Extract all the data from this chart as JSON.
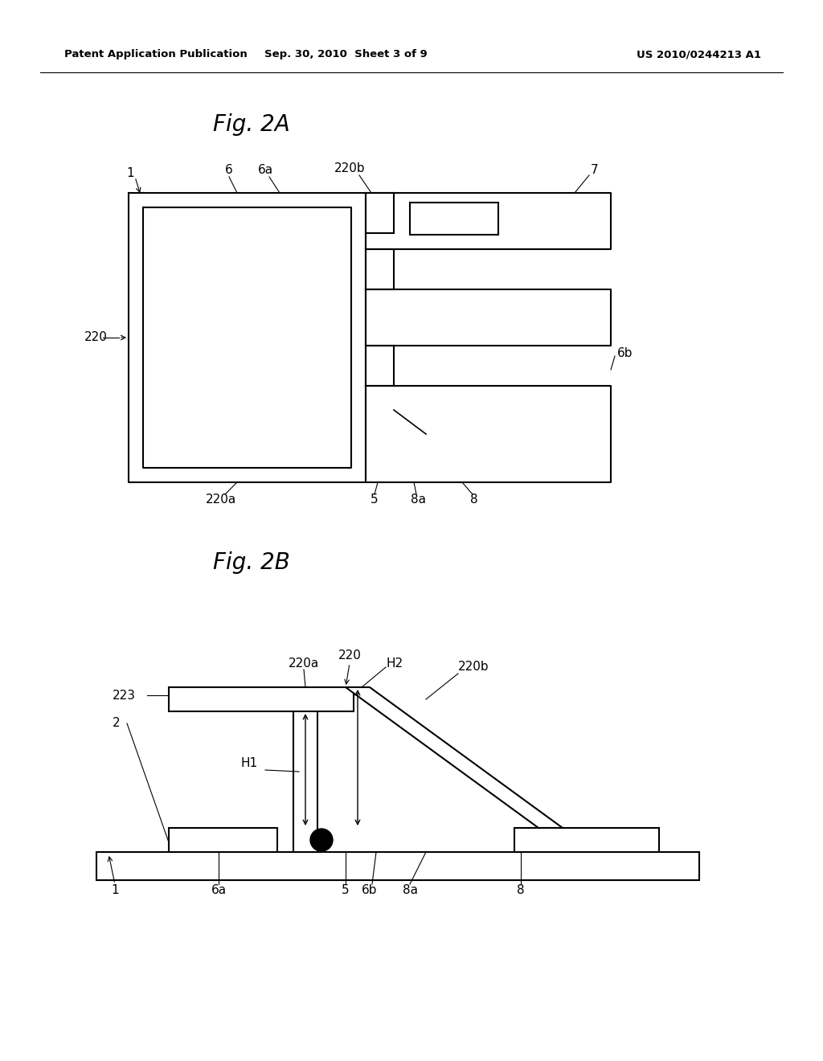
{
  "header_left": "Patent Application Publication",
  "header_center": "Sep. 30, 2010  Sheet 3 of 9",
  "header_right": "US 2010/0244213 A1",
  "fig2a_title": "Fig. 2A",
  "fig2b_title": "Fig. 2B",
  "background_color": "#ffffff",
  "line_color": "#000000",
  "line_width": 1.5
}
